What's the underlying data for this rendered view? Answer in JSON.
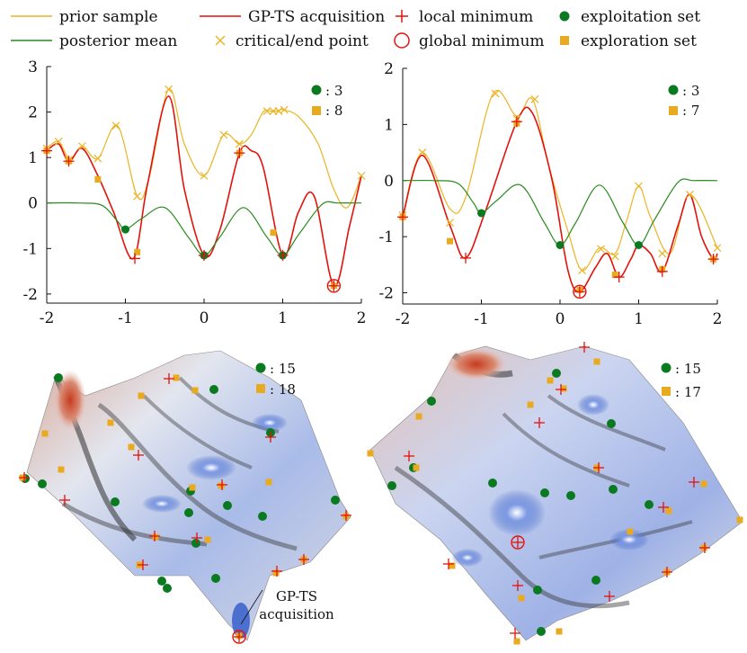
{
  "colors": {
    "prior": "#EBB424",
    "gpts": "#E3120B",
    "posterior": "#2A8A1E",
    "local_min": "#E3120B",
    "exploit": "#0A7A20",
    "explore": "#EAAA20",
    "surface_low": "#3E63C8",
    "surface_high": "#C23A22"
  },
  "legend": {
    "prior_sample": "prior sample",
    "posterior_mean": "posterior mean",
    "gpts_acquisition": "GP-TS acquisition",
    "critical_end_point": "critical/end point",
    "local_minimum": "local minimum",
    "global_minimum": "global minimum",
    "exploitation_set": "exploitation set",
    "exploration_set": "exploration set"
  },
  "chart_data": [
    {
      "type": "line",
      "xlim": [
        -2,
        2
      ],
      "ylim": [
        -2.2,
        3.0
      ],
      "xticks": [
        -2,
        -1,
        0,
        1,
        2
      ],
      "yticks": [
        -2,
        -1,
        0,
        1,
        2,
        3
      ],
      "xtick_labels": [
        "-2",
        "-1",
        "0",
        "1",
        "2"
      ],
      "ytick_labels": [
        "-2",
        "-1",
        "0",
        "1",
        "2",
        "3"
      ],
      "counts": {
        "exploitation": ": 3",
        "exploration": ": 8"
      },
      "series": [
        {
          "name": "prior sample",
          "x": [
            -2.0,
            -1.85,
            -1.7,
            -1.55,
            -1.35,
            -1.1,
            -0.85,
            -0.7,
            -0.45,
            -0.25,
            0.0,
            0.25,
            0.45,
            0.6,
            0.75,
            0.85,
            0.92,
            1.0,
            1.2,
            1.45,
            1.65,
            1.82,
            2.0
          ],
          "y": [
            1.2,
            1.35,
            0.95,
            1.25,
            0.98,
            1.7,
            0.15,
            0.55,
            2.5,
            1.3,
            0.6,
            1.5,
            1.3,
            1.5,
            2.0,
            2.02,
            2.02,
            2.05,
            1.9,
            1.3,
            0.3,
            -0.1,
            0.6
          ]
        },
        {
          "name": "GP-TS acquisition",
          "x": [
            -2.0,
            -1.85,
            -1.72,
            -1.55,
            -1.35,
            -1.15,
            -0.9,
            -0.72,
            -0.45,
            -0.25,
            0.0,
            0.2,
            0.45,
            0.6,
            0.75,
            1.0,
            1.2,
            1.4,
            1.65,
            1.85,
            2.0
          ],
          "y": [
            1.15,
            1.3,
            0.92,
            1.2,
            0.6,
            -0.2,
            -1.22,
            0.4,
            2.35,
            0.3,
            -1.15,
            -0.6,
            1.1,
            1.15,
            0.8,
            -1.15,
            -0.2,
            0.15,
            -1.82,
            -0.5,
            0.6
          ]
        },
        {
          "name": "posterior mean",
          "x": [
            -2.0,
            -1.6,
            -1.3,
            -1.1,
            -1.0,
            -0.8,
            -0.5,
            -0.2,
            0.0,
            0.2,
            0.5,
            0.8,
            1.0,
            1.2,
            1.5,
            1.7,
            2.0
          ],
          "y": [
            0.0,
            0.0,
            -0.05,
            -0.4,
            -0.58,
            -0.35,
            -0.1,
            -0.75,
            -1.15,
            -0.75,
            -0.1,
            -0.75,
            -1.15,
            -0.7,
            -0.03,
            0.0,
            0.0
          ]
        }
      ],
      "critical_points": {
        "x": [
          -2.0,
          -1.85,
          -1.72,
          -1.55,
          -1.35,
          -1.12,
          -0.85,
          -0.45,
          0.0,
          0.25,
          0.45,
          0.8,
          0.88,
          0.95,
          1.02,
          2.0
        ],
        "y": [
          1.2,
          1.35,
          0.95,
          1.25,
          0.98,
          1.7,
          0.15,
          2.5,
          0.6,
          1.5,
          1.3,
          2.02,
          2.02,
          2.02,
          2.05,
          0.6
        ]
      },
      "local_minima": {
        "x": [
          -2.0,
          -1.72,
          -0.88,
          0.0,
          0.45,
          1.0,
          1.65
        ],
        "y": [
          1.15,
          0.92,
          -1.22,
          -1.15,
          1.1,
          -1.15,
          -1.82
        ]
      },
      "global_minimum": {
        "x": 1.65,
        "y": -1.82
      },
      "exploitation_set": {
        "x": [
          -1.0,
          0.0,
          1.0
        ],
        "y": [
          -0.58,
          -1.15,
          -1.15
        ]
      },
      "exploration_set": {
        "x": [
          -1.35,
          -0.85,
          0.0,
          0.45,
          0.88,
          1.65,
          -1.72,
          -2.0
        ],
        "y": [
          0.52,
          -1.08,
          -1.15,
          1.1,
          -0.65,
          -1.82,
          0.92,
          1.15
        ]
      }
    },
    {
      "type": "line",
      "xlim": [
        -2,
        2
      ],
      "ylim": [
        -2.2,
        2.0
      ],
      "xticks": [
        -2,
        -1,
        0,
        1,
        2
      ],
      "yticks": [
        -2,
        -1,
        0,
        1,
        2
      ],
      "xtick_labels": [
        "-2",
        "-1",
        "0",
        "1",
        "2"
      ],
      "ytick_labels": [
        "-2",
        "-1",
        "0",
        "1",
        "2"
      ],
      "counts": {
        "exploitation": ": 3",
        "exploration": ": 7"
      },
      "series": [
        {
          "name": "prior sample",
          "x": [
            -2.0,
            -1.75,
            -1.4,
            -1.2,
            -0.85,
            -0.55,
            -0.35,
            -0.15,
            0.1,
            0.28,
            0.5,
            0.7,
            0.85,
            1.0,
            1.15,
            1.4,
            1.65,
            2.0
          ],
          "y": [
            -0.62,
            0.5,
            -0.5,
            -0.3,
            1.55,
            1.15,
            1.45,
            0.3,
            -0.9,
            -1.6,
            -1.2,
            -1.3,
            -0.7,
            -0.1,
            -0.65,
            -1.3,
            -0.25,
            -1.2
          ]
        },
        {
          "name": "GP-TS acquisition",
          "x": [
            -2.0,
            -1.75,
            -1.4,
            -1.2,
            -0.95,
            -0.55,
            -0.35,
            -0.1,
            0.1,
            0.25,
            0.45,
            0.6,
            0.75,
            0.9,
            1.0,
            1.15,
            1.3,
            1.5,
            1.65,
            1.8,
            1.95,
            2.0
          ],
          "y": [
            -0.65,
            0.45,
            -0.8,
            -1.38,
            -0.55,
            1.05,
            1.2,
            0.0,
            -1.6,
            -1.98,
            -1.55,
            -1.3,
            -1.72,
            -1.4,
            -1.15,
            -1.3,
            -1.62,
            -0.8,
            -0.25,
            -1.0,
            -1.4,
            -1.3
          ]
        },
        {
          "name": "posterior mean",
          "x": [
            -2.0,
            -1.6,
            -1.3,
            -1.1,
            -1.0,
            -0.8,
            -0.5,
            -0.2,
            0.0,
            0.2,
            0.5,
            0.8,
            1.0,
            1.2,
            1.5,
            1.7,
            2.0
          ],
          "y": [
            0.0,
            0.0,
            -0.05,
            -0.4,
            -0.58,
            -0.35,
            -0.08,
            -0.75,
            -1.15,
            -0.75,
            -0.08,
            -0.75,
            -1.15,
            -0.7,
            -0.03,
            0.0,
            0.0
          ]
        }
      ],
      "critical_points": {
        "x": [
          -2.0,
          -1.75,
          -1.4,
          -0.82,
          -0.55,
          -0.32,
          0.28,
          0.52,
          0.7,
          1.0,
          1.3,
          1.65,
          2.0
        ],
        "y": [
          -0.62,
          0.5,
          -0.75,
          1.55,
          1.1,
          1.45,
          -1.6,
          -1.22,
          -1.35,
          -0.1,
          -1.3,
          -0.25,
          -1.2
        ]
      },
      "local_minima": {
        "x": [
          -2.0,
          -1.2,
          -0.55,
          0.25,
          0.75,
          1.3,
          1.95
        ],
        "y": [
          -0.65,
          -1.38,
          1.05,
          -1.98,
          -1.72,
          -1.62,
          -1.4
        ]
      },
      "global_minimum": {
        "x": 0.25,
        "y": -1.98
      },
      "exploitation_set": {
        "x": [
          -1.0,
          0.0,
          1.0
        ],
        "y": [
          -0.58,
          -1.15,
          -1.15
        ]
      },
      "exploration_set": {
        "x": [
          -1.4,
          -0.55,
          0.25,
          0.7,
          1.3,
          1.95,
          -2.0
        ],
        "y": [
          -1.08,
          1.02,
          -1.95,
          -1.68,
          -1.58,
          -1.4,
          -0.65
        ]
      }
    },
    {
      "type": "surface",
      "counts": {
        "exploitation": ": 15",
        "exploration": ": 18"
      },
      "annotation_line1": "GP-TS",
      "annotation_line2": "acquisition"
    },
    {
      "type": "surface",
      "counts": {
        "exploitation": ": 15",
        "exploration": ": 17"
      }
    }
  ]
}
